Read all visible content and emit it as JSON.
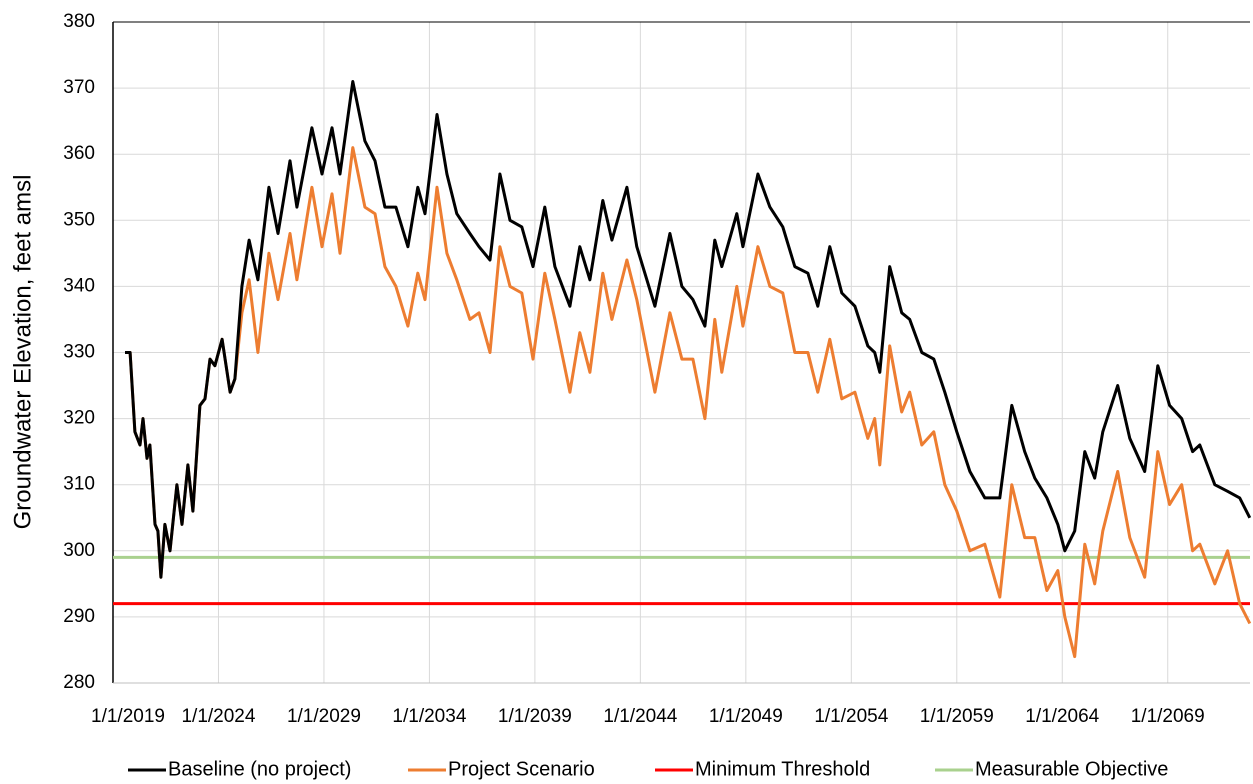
{
  "chart_data": {
    "type": "line",
    "y_label": "Groundwater Elevation, feet amsl",
    "x": [
      2019.57,
      2019.81,
      2020.04,
      2020.28,
      2020.42,
      2020.61,
      2020.75,
      2020.99,
      2021.13,
      2021.27,
      2021.46,
      2021.7,
      2022.03,
      2022.27,
      2022.55,
      2022.79,
      2023.12,
      2023.36,
      2023.6,
      2023.83,
      2024.17,
      2024.55,
      2024.78,
      2025.11,
      2025.45,
      2025.87,
      2026.39,
      2026.82,
      2027.39,
      2027.72,
      2028.43,
      2028.91,
      2029.38,
      2029.76,
      2030.37,
      2030.94,
      2031.42,
      2031.89,
      2032.41,
      2032.98,
      2033.45,
      2033.79,
      2034.36,
      2034.83,
      2035.3,
      2035.92,
      2036.35,
      2036.87,
      2037.34,
      2037.82,
      2038.38,
      2038.91,
      2039.47,
      2039.95,
      2040.66,
      2041.13,
      2041.61,
      2042.22,
      2042.65,
      2043.36,
      2043.83,
      2044.69,
      2045.4,
      2045.97,
      2046.49,
      2047.06,
      2047.53,
      2047.86,
      2048.57,
      2048.86,
      2049.57,
      2050.14,
      2050.75,
      2051.32,
      2051.94,
      2052.41,
      2052.98,
      2053.55,
      2054.17,
      2054.78,
      2055.11,
      2055.35,
      2055.82,
      2056.39,
      2056.77,
      2057.34,
      2057.91,
      2058.43,
      2059.0,
      2059.62,
      2060.33,
      2061.04,
      2061.61,
      2062.22,
      2062.7,
      2063.27,
      2063.79,
      2064.12,
      2064.59,
      2065.07,
      2065.54,
      2065.92,
      2066.63,
      2067.2,
      2067.91,
      2068.53,
      2069.09,
      2069.66,
      2070.18,
      2070.52,
      2071.23,
      2071.84,
      2072.41,
      2072.89
    ],
    "series": [
      {
        "name": "Baseline (no project)",
        "color": "#000000",
        "values": [
          330,
          330,
          318,
          316,
          320,
          314,
          316,
          304,
          303,
          296,
          304,
          300,
          310,
          304,
          313,
          306,
          322,
          323,
          329,
          328,
          332,
          324,
          326,
          340,
          347,
          341,
          355,
          348,
          359,
          352,
          364,
          357,
          364,
          357,
          371,
          362,
          359,
          352,
          352,
          346,
          355,
          351,
          366,
          357,
          351,
          348,
          346,
          344,
          357,
          350,
          349,
          343,
          352,
          343,
          337,
          346,
          341,
          353,
          347,
          355,
          346,
          337,
          348,
          340,
          338,
          334,
          347,
          343,
          351,
          346,
          357,
          352,
          349,
          343,
          342,
          337,
          346,
          339,
          337,
          331,
          330,
          327,
          343,
          336,
          335,
          330,
          329,
          324,
          318,
          312,
          308,
          308,
          322,
          315,
          311,
          308,
          304,
          300,
          303,
          315,
          311,
          318,
          325,
          317,
          312,
          328,
          322,
          320,
          315,
          316,
          310,
          309,
          308,
          305
        ]
      },
      {
        "name": "Project Scenario",
        "color": "#ed7d31",
        "values": [
          330,
          330,
          318,
          316,
          320,
          314,
          316,
          304,
          303,
          296,
          304,
          300,
          310,
          304,
          313,
          306,
          322,
          323,
          329,
          328,
          332,
          324,
          326,
          336,
          341,
          330,
          345,
          338,
          348,
          341,
          355,
          346,
          354,
          345,
          361,
          352,
          351,
          343,
          340,
          334,
          342,
          338,
          355,
          345,
          341,
          335,
          336,
          330,
          346,
          340,
          339,
          329,
          342,
          335,
          324,
          333,
          327,
          342,
          335,
          344,
          338,
          324,
          336,
          329,
          329,
          320,
          335,
          327,
          340,
          334,
          346,
          340,
          339,
          330,
          330,
          324,
          332,
          323,
          324,
          317,
          320,
          313,
          331,
          321,
          324,
          316,
          318,
          310,
          306,
          300,
          301,
          293,
          310,
          302,
          302,
          294,
          297,
          290,
          284,
          301,
          295,
          303,
          312,
          302,
          296,
          315,
          307,
          310,
          300,
          301,
          295,
          300,
          292,
          289
        ]
      },
      {
        "name": "Minimum Threshold",
        "color": "#ff0000",
        "value": 292
      },
      {
        "name": "Measurable Objective",
        "color": "#a9d18e",
        "value": 299
      }
    ],
    "xlim": [
      2019,
      2072.9
    ],
    "xticks": [
      {
        "value": 2019,
        "label": "1/1/2019"
      },
      {
        "value": 2024,
        "label": "1/1/2024"
      },
      {
        "value": 2029,
        "label": "1/1/2029"
      },
      {
        "value": 2034,
        "label": "1/1/2034"
      },
      {
        "value": 2039,
        "label": "1/1/2039"
      },
      {
        "value": 2044,
        "label": "1/1/2044"
      },
      {
        "value": 2049,
        "label": "1/1/2049"
      },
      {
        "value": 2054,
        "label": "1/1/2054"
      },
      {
        "value": 2059,
        "label": "1/1/2059"
      },
      {
        "value": 2064,
        "label": "1/1/2064"
      },
      {
        "value": 2069,
        "label": "1/1/2069"
      }
    ],
    "ylim": [
      280,
      380
    ],
    "yticks": [
      280,
      290,
      300,
      310,
      320,
      330,
      340,
      350,
      360,
      370,
      380
    ],
    "grid": true
  }
}
